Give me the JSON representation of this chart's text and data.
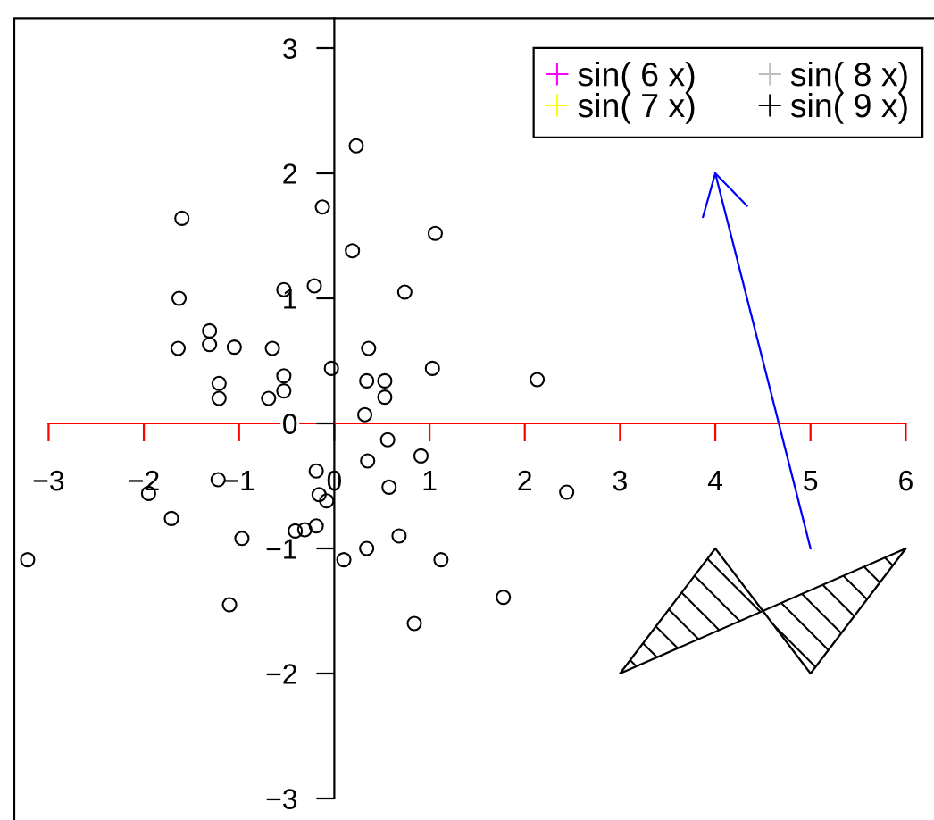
{
  "chart_data": {
    "type": "scatter",
    "xlim": [
      -3.36,
      6.36
    ],
    "ylim": [
      -3.24,
      3.24
    ],
    "xticks": [
      {
        "value": -3,
        "label": "−3"
      },
      {
        "value": -2,
        "label": "−2"
      },
      {
        "value": -1,
        "label": "−1"
      },
      0,
      1,
      2,
      3,
      4,
      5,
      6
    ],
    "yticks": [
      {
        "value": -3,
        "label": "−3"
      },
      {
        "value": -2,
        "label": "−2"
      },
      {
        "value": -1,
        "label": "−1"
      },
      0,
      1,
      2,
      3
    ],
    "legend": "top right",
    "series": [
      {
        "marker": "circle",
        "color": "#000000",
        "x": [
          0.23,
          -0.125,
          -1.6,
          1.06,
          0.19,
          -0.21,
          -0.53,
          0.74,
          -1.63,
          -1.31,
          -1.31,
          -1.05,
          -0.65,
          -1.64,
          0.36,
          -0.03,
          1.03,
          2.13,
          -1.21,
          -0.53,
          0.34,
          0.53,
          -0.53,
          -1.21,
          -0.69,
          0.53,
          0.32,
          0.56,
          0.91,
          0.35,
          -0.19,
          -1.22,
          0.575,
          2.44,
          -1.95,
          -0.16,
          -0.08,
          -1.71,
          -0.19,
          -0.31,
          -0.41,
          0.68,
          -0.97,
          0.34,
          -3.22,
          0.1,
          1.12,
          1.775,
          -1.1,
          0.84
        ],
        "values": [
          2.22,
          1.73,
          1.64,
          1.52,
          1.38,
          1.1,
          1.07,
          1.05,
          1.0,
          0.74,
          0.63,
          0.61,
          0.6,
          0.6,
          0.6,
          0.44,
          0.44,
          0.35,
          0.32,
          0.38,
          0.34,
          0.34,
          0.26,
          0.2,
          0.2,
          0.21,
          0.07,
          -0.13,
          -0.26,
          -0.3,
          -0.38,
          -0.45,
          -0.51,
          -0.55,
          -0.56,
          -0.57,
          -0.62,
          -0.76,
          -0.82,
          -0.85,
          -0.86,
          -0.9,
          -0.92,
          -1.0,
          -1.09,
          -1.09,
          -1.09,
          -1.39,
          -1.45,
          -1.6
        ]
      },
      {
        "type": "line",
        "color": "#0000ff",
        "x": [
          5,
          4
        ],
        "values": [
          -1,
          2
        ]
      },
      {
        "marker": "cross",
        "name": "sin( 6 x)",
        "color": "#ff00ff"
      },
      {
        "marker": "cross",
        "name": "sin( 7 x)",
        "color": "#ffff00"
      },
      {
        "marker": "cross",
        "name": "sin( 8 x)",
        "color": "#bebebe"
      },
      {
        "marker": "cross",
        "name": "sin( 9 x)",
        "color": "#000000"
      }
    ]
  }
}
